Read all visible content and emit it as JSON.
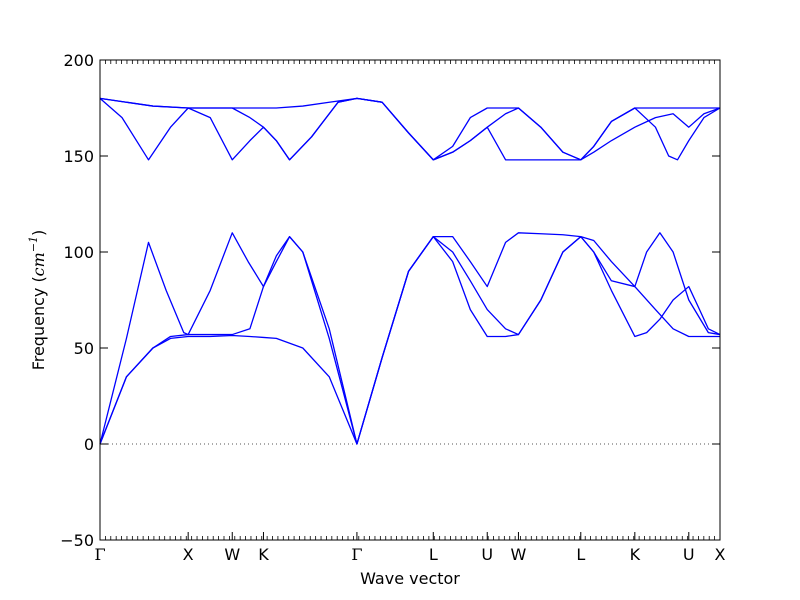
{
  "chart_data": {
    "type": "line",
    "title": "",
    "xlabel": "Wave vector",
    "ylabel": {
      "text": "Frequency (",
      "unit": "cm",
      "exponent": "−1",
      "close": ")"
    },
    "ylim": [
      -50,
      200
    ],
    "yticks": [
      -50,
      0,
      50,
      100,
      150,
      200
    ],
    "ytick_labels": [
      "−50",
      "0",
      "50",
      "100",
      "150",
      "200"
    ],
    "zero_line": {
      "y": 0,
      "style": "dotted"
    },
    "high_symmetry_points": [
      {
        "label": "Γ",
        "x": 0.0
      },
      {
        "label": "X",
        "x": 1.0
      },
      {
        "label": "W",
        "x": 1.5
      },
      {
        "label": "K",
        "x": 1.854
      },
      {
        "label": "Γ",
        "x": 2.914
      },
      {
        "label": "L",
        "x": 3.78
      },
      {
        "label": "U",
        "x": 4.392
      },
      {
        "label": "W",
        "x": 4.746
      },
      {
        "label": "L",
        "x": 5.453
      },
      {
        "label": "K",
        "x": 6.066
      },
      {
        "label": "U",
        "x": 6.678
      },
      {
        "label": "X",
        "x": 7.032
      }
    ],
    "line_color": "#0000ff",
    "series": [
      {
        "points": [
          [
            0,
            0
          ],
          [
            0.3,
            55
          ],
          [
            0.55,
            105
          ],
          [
            0.75,
            80
          ],
          [
            0.95,
            58
          ],
          [
            1.0,
            57
          ],
          [
            1.25,
            80
          ],
          [
            1.5,
            110
          ],
          [
            1.68,
            95
          ],
          [
            1.854,
            82
          ],
          [
            2.0,
            95
          ],
          [
            2.15,
            108
          ],
          [
            2.3,
            100
          ],
          [
            2.6,
            55
          ],
          [
            2.914,
            0
          ],
          [
            3.2,
            45
          ],
          [
            3.5,
            90
          ],
          [
            3.78,
            108
          ],
          [
            4.0,
            95
          ],
          [
            4.2,
            70
          ],
          [
            4.392,
            56
          ],
          [
            4.6,
            56
          ],
          [
            4.746,
            57
          ],
          [
            5.0,
            75
          ],
          [
            5.25,
            100
          ],
          [
            5.453,
            108
          ],
          [
            5.6,
            100
          ],
          [
            5.8,
            80
          ],
          [
            6.066,
            56
          ],
          [
            6.2,
            58
          ],
          [
            6.35,
            65
          ],
          [
            6.5,
            75
          ],
          [
            6.678,
            82
          ],
          [
            6.8,
            70
          ],
          [
            6.9,
            60
          ],
          [
            7.032,
            57
          ]
        ]
      },
      {
        "points": [
          [
            0,
            0
          ],
          [
            0.3,
            35
          ],
          [
            0.6,
            50
          ],
          [
            0.8,
            56
          ],
          [
            1.0,
            57
          ],
          [
            1.25,
            57
          ],
          [
            1.5,
            57
          ],
          [
            1.7,
            60
          ],
          [
            1.854,
            82
          ],
          [
            2.0,
            98
          ],
          [
            2.15,
            108
          ],
          [
            2.3,
            100
          ],
          [
            2.6,
            60
          ],
          [
            2.914,
            0
          ],
          [
            3.2,
            45
          ],
          [
            3.5,
            90
          ],
          [
            3.78,
            108
          ],
          [
            4.0,
            108
          ],
          [
            4.2,
            95
          ],
          [
            4.392,
            82
          ],
          [
            4.6,
            105
          ],
          [
            4.746,
            110
          ],
          [
            5.0,
            109.5
          ],
          [
            5.25,
            109
          ],
          [
            5.453,
            108
          ],
          [
            5.6,
            100
          ],
          [
            5.8,
            85
          ],
          [
            6.066,
            82
          ],
          [
            6.2,
            100
          ],
          [
            6.35,
            110
          ],
          [
            6.5,
            100
          ],
          [
            6.678,
            75
          ],
          [
            6.9,
            58
          ],
          [
            7.032,
            57
          ]
        ]
      },
      {
        "points": [
          [
            0,
            0
          ],
          [
            0.3,
            35
          ],
          [
            0.6,
            50
          ],
          [
            0.8,
            55
          ],
          [
            1.0,
            56
          ],
          [
            1.25,
            56
          ],
          [
            1.5,
            56.5
          ],
          [
            1.7,
            56
          ],
          [
            1.854,
            55.5
          ],
          [
            2.0,
            55
          ],
          [
            2.3,
            50
          ],
          [
            2.6,
            35
          ],
          [
            2.914,
            0
          ],
          [
            3.2,
            45
          ],
          [
            3.5,
            90
          ],
          [
            3.78,
            108
          ],
          [
            4.0,
            100
          ],
          [
            4.2,
            85
          ],
          [
            4.392,
            70
          ],
          [
            4.6,
            60
          ],
          [
            4.746,
            57
          ],
          [
            5.0,
            75
          ],
          [
            5.25,
            100
          ],
          [
            5.453,
            108
          ],
          [
            5.6,
            106
          ],
          [
            5.8,
            95
          ],
          [
            6.066,
            82
          ],
          [
            6.3,
            70
          ],
          [
            6.5,
            60
          ],
          [
            6.678,
            56
          ],
          [
            6.9,
            56
          ],
          [
            7.032,
            56
          ]
        ]
      },
      {
        "points": [
          [
            0,
            180
          ],
          [
            0.25,
            170
          ],
          [
            0.55,
            148
          ],
          [
            0.8,
            165
          ],
          [
            1.0,
            175
          ],
          [
            1.25,
            170
          ],
          [
            1.5,
            148
          ],
          [
            1.7,
            158
          ],
          [
            1.854,
            165
          ],
          [
            2.0,
            158
          ],
          [
            2.15,
            148
          ],
          [
            2.4,
            160
          ],
          [
            2.7,
            178
          ],
          [
            2.914,
            180
          ],
          [
            3.2,
            178
          ],
          [
            3.5,
            162
          ],
          [
            3.78,
            148
          ],
          [
            4.0,
            155
          ],
          [
            4.2,
            170
          ],
          [
            4.392,
            175
          ],
          [
            4.6,
            175
          ],
          [
            4.746,
            175
          ],
          [
            5.0,
            165
          ],
          [
            5.25,
            152
          ],
          [
            5.453,
            148
          ],
          [
            5.6,
            155
          ],
          [
            5.8,
            168
          ],
          [
            6.066,
            175
          ],
          [
            6.3,
            165
          ],
          [
            6.45,
            150
          ],
          [
            6.55,
            148
          ],
          [
            6.678,
            158
          ],
          [
            6.85,
            170
          ],
          [
            7.032,
            175
          ]
        ]
      },
      {
        "points": [
          [
            0,
            180
          ],
          [
            0.3,
            178
          ],
          [
            0.6,
            176
          ],
          [
            1.0,
            175
          ],
          [
            1.25,
            175
          ],
          [
            1.5,
            175
          ],
          [
            1.7,
            170
          ],
          [
            1.854,
            165
          ],
          [
            2.0,
            158
          ],
          [
            2.15,
            148
          ],
          [
            2.4,
            160
          ],
          [
            2.7,
            178
          ],
          [
            2.914,
            180
          ],
          [
            3.2,
            178
          ],
          [
            3.5,
            162
          ],
          [
            3.78,
            148
          ],
          [
            4.0,
            152
          ],
          [
            4.2,
            158
          ],
          [
            4.392,
            165
          ],
          [
            4.6,
            148
          ],
          [
            4.746,
            148
          ],
          [
            5.0,
            148
          ],
          [
            5.25,
            148
          ],
          [
            5.453,
            148
          ],
          [
            5.6,
            152
          ],
          [
            5.8,
            158
          ],
          [
            6.066,
            165
          ],
          [
            6.3,
            170
          ],
          [
            6.5,
            172
          ],
          [
            6.678,
            165
          ],
          [
            6.85,
            172
          ],
          [
            7.032,
            175
          ]
        ]
      },
      {
        "points": [
          [
            0,
            180
          ],
          [
            0.3,
            178
          ],
          [
            0.6,
            176
          ],
          [
            1.0,
            175
          ],
          [
            1.25,
            175
          ],
          [
            1.5,
            175
          ],
          [
            1.7,
            175
          ],
          [
            1.854,
            175
          ],
          [
            2.0,
            175
          ],
          [
            2.3,
            176
          ],
          [
            2.6,
            178
          ],
          [
            2.914,
            180
          ],
          [
            3.2,
            178
          ],
          [
            3.5,
            162
          ],
          [
            3.78,
            148
          ],
          [
            4.0,
            152
          ],
          [
            4.2,
            158
          ],
          [
            4.392,
            165
          ],
          [
            4.6,
            172
          ],
          [
            4.746,
            175
          ],
          [
            5.0,
            165
          ],
          [
            5.25,
            152
          ],
          [
            5.453,
            148
          ],
          [
            5.6,
            155
          ],
          [
            5.8,
            168
          ],
          [
            6.066,
            175
          ],
          [
            6.3,
            175
          ],
          [
            6.5,
            175
          ],
          [
            6.678,
            175
          ],
          [
            6.85,
            175
          ],
          [
            7.032,
            175
          ]
        ]
      }
    ]
  }
}
